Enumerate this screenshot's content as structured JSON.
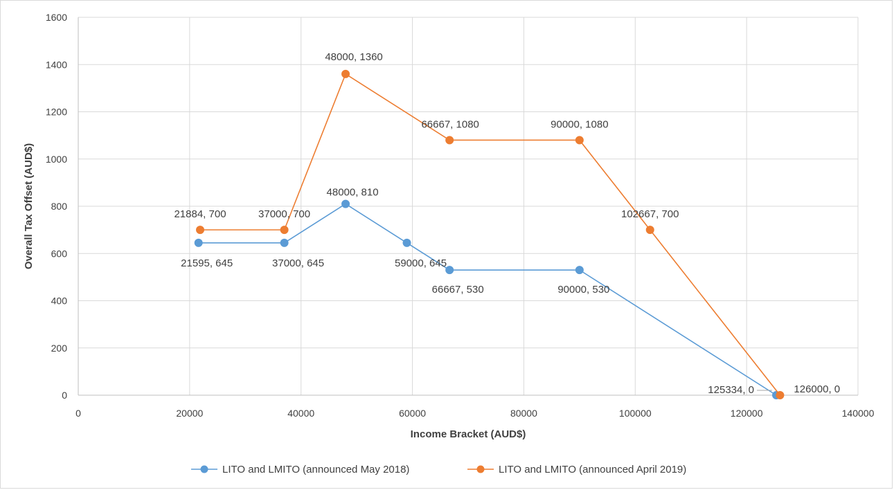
{
  "chart_data": {
    "type": "line",
    "title": "",
    "xlabel": "Income Bracket (AUD$)",
    "ylabel": "Overall Tax Offset (AUD$)",
    "xlim": [
      0,
      140000
    ],
    "ylim": [
      0,
      1600
    ],
    "x_ticks": [
      "0",
      "20000",
      "40000",
      "60000",
      "80000",
      "100000",
      "120000",
      "140000"
    ],
    "y_ticks": [
      "0",
      "200",
      "400",
      "600",
      "800",
      "1000",
      "1200",
      "1400",
      "1600"
    ],
    "grid": true,
    "legend_position": "bottom",
    "series": [
      {
        "name": "LITO and LMITO (announced May 2018)",
        "color": "#5b9bd5",
        "points": [
          {
            "x": 21595,
            "y": 645,
            "label": "21595, 645"
          },
          {
            "x": 37000,
            "y": 645,
            "label": "37000, 645"
          },
          {
            "x": 48000,
            "y": 810,
            "label": "48000, 810"
          },
          {
            "x": 59000,
            "y": 645,
            "label": "59000, 645"
          },
          {
            "x": 66667,
            "y": 530,
            "label": "66667, 530"
          },
          {
            "x": 90000,
            "y": 530,
            "label": "90000, 530"
          },
          {
            "x": 125334,
            "y": 0,
            "label": "125334, 0"
          }
        ]
      },
      {
        "name": "LITO and LMITO (announced April 2019)",
        "color": "#ed7d31",
        "points": [
          {
            "x": 21884,
            "y": 700,
            "label": "21884, 700"
          },
          {
            "x": 37000,
            "y": 700,
            "label": "37000, 700"
          },
          {
            "x": 48000,
            "y": 1360,
            "label": "48000, 1360"
          },
          {
            "x": 66667,
            "y": 1080,
            "label": "66667, 1080"
          },
          {
            "x": 90000,
            "y": 1080,
            "label": "90000, 1080"
          },
          {
            "x": 102667,
            "y": 700,
            "label": "102667, 700"
          },
          {
            "x": 126000,
            "y": 0,
            "label": "126000, 0"
          }
        ]
      }
    ]
  }
}
